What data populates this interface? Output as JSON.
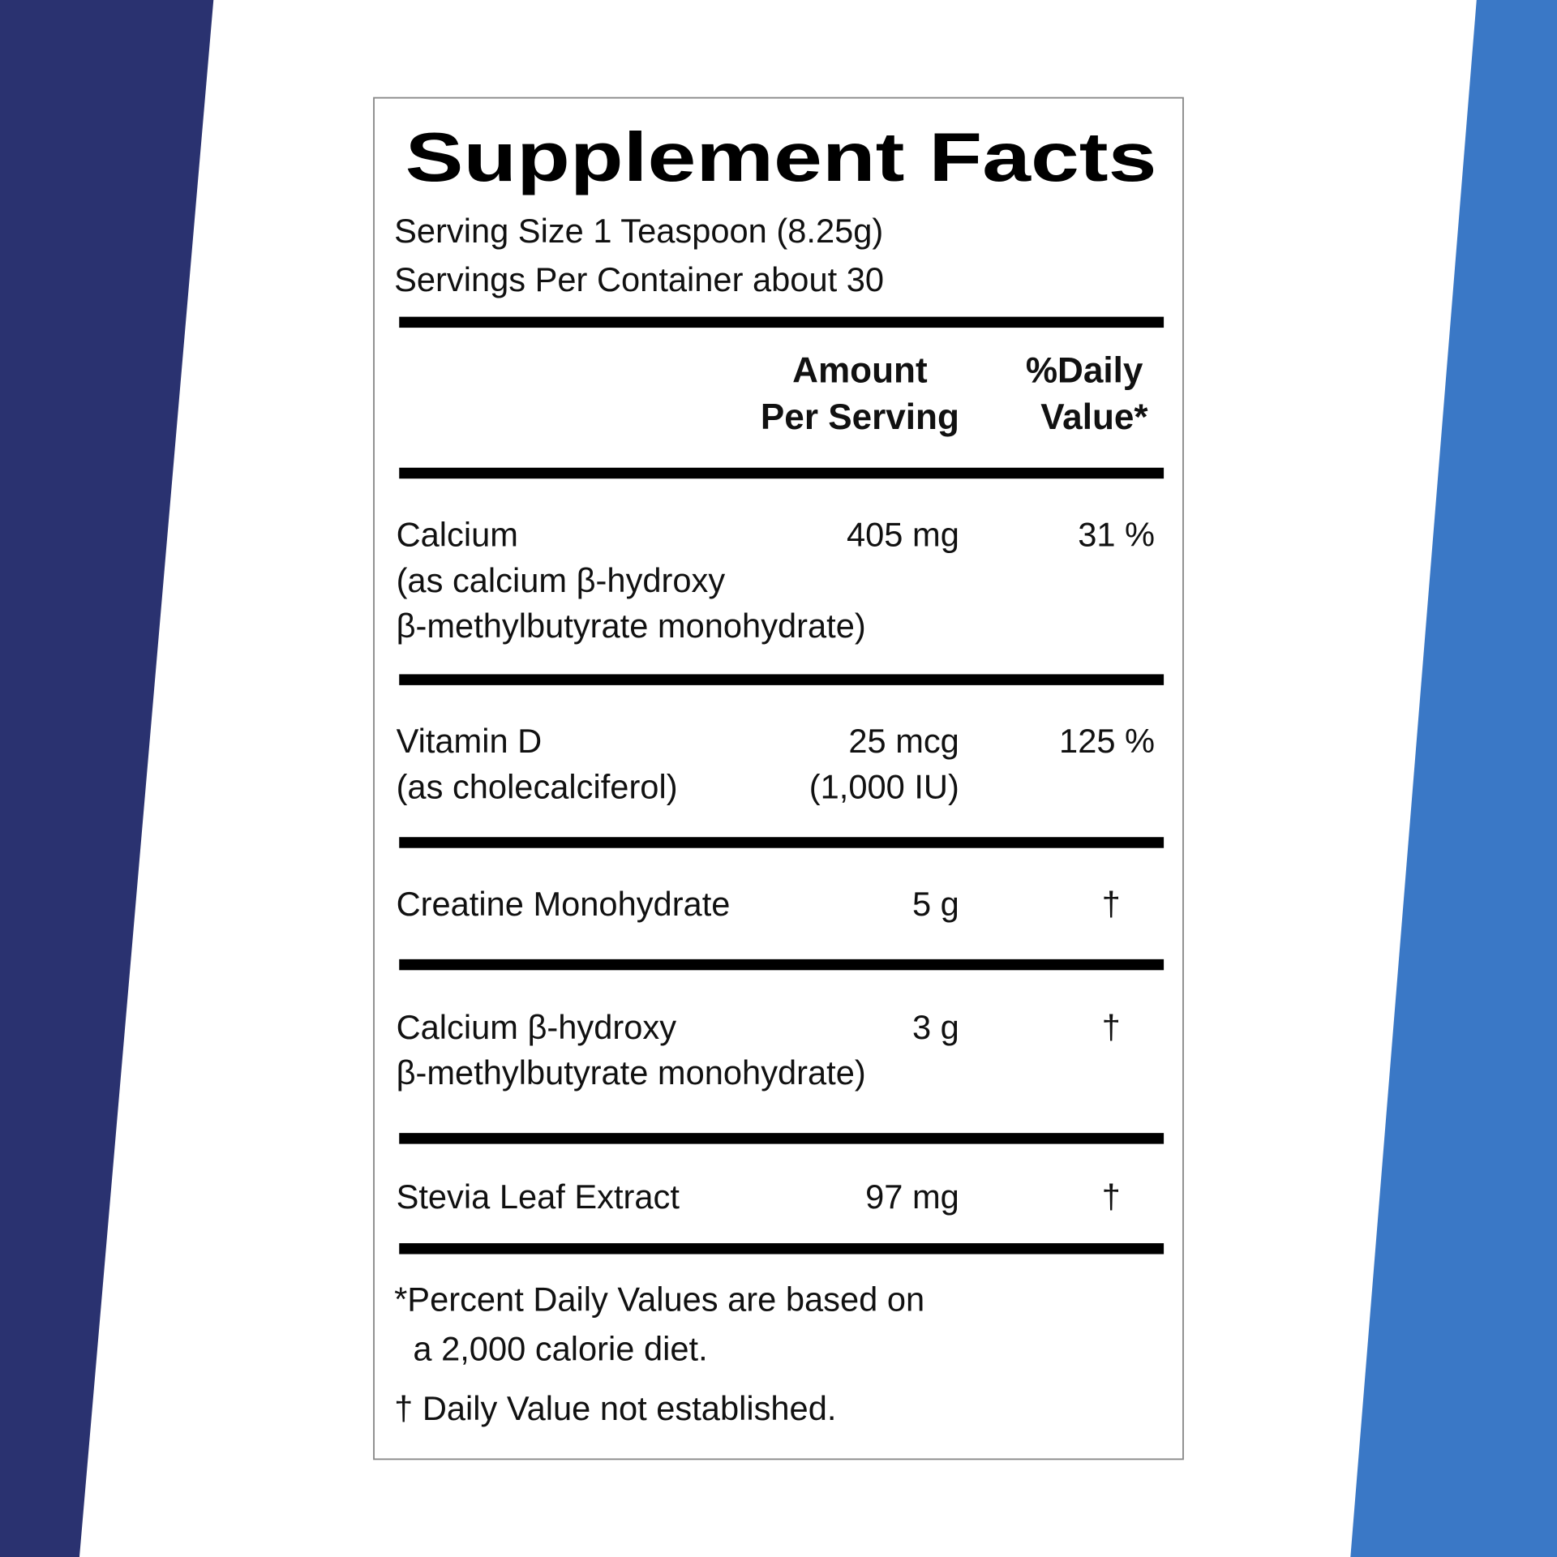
{
  "title": "Supplement Facts",
  "serving_size": "Serving Size 1 Teaspoon (8.25g)",
  "servings_per_container": "Servings Per Container about 30",
  "header": {
    "amount": [
      "Amount",
      "Per Serving"
    ],
    "daily_value": [
      "%Daily",
      "Value*"
    ]
  },
  "rows": [
    {
      "name": [
        "Calcium",
        "(as calcium β-hydroxy",
        "β-methylbutyrate monohydrate)"
      ],
      "amount": [
        "405 mg"
      ],
      "daily_value": "31 %"
    },
    {
      "name": [
        "Vitamin D",
        "(as cholecalciferol)"
      ],
      "amount": [
        "25 mcg",
        "(1,000 IU)"
      ],
      "daily_value": "125 %"
    },
    {
      "name": [
        "Creatine Monohydrate"
      ],
      "amount": [
        "5 g"
      ],
      "daily_value": "†"
    },
    {
      "name": [
        "Calcium β-hydroxy",
        "β-methylbutyrate monohydrate)"
      ],
      "amount": [
        "3 g"
      ],
      "daily_value": "†"
    },
    {
      "name": [
        "Stevia Leaf Extract"
      ],
      "amount": [
        "97 mg"
      ],
      "daily_value": "†"
    }
  ],
  "footnotes": [
    "*Percent Daily Values are based on",
    "a 2,000 calorie diet.",
    "† Daily Value not established."
  ]
}
